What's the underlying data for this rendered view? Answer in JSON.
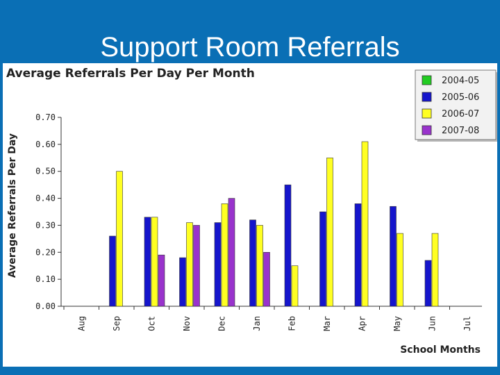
{
  "slide": {
    "title": "Support Room Referrals"
  },
  "colors": {
    "background": "#0a6fb5",
    "panel": "#ffffff"
  },
  "chart_data": {
    "type": "bar",
    "title": "Average Referrals Per Day Per Month",
    "xlabel": "School Months",
    "ylabel": "Average Referrals Per Day",
    "categories": [
      "Aug",
      "Sep",
      "Oct",
      "Nov",
      "Dec",
      "Jan",
      "Feb",
      "Mar",
      "Apr",
      "May",
      "Jun",
      "Jul"
    ],
    "ylim": [
      0,
      0.7
    ],
    "yticks": [
      "0.00",
      "0.10",
      "0.20",
      "0.30",
      "0.40",
      "0.50",
      "0.60",
      "0.70"
    ],
    "grid": false,
    "legend_position": "top-right",
    "series": [
      {
        "name": "2004-05",
        "color": "#22cc22",
        "values": [
          null,
          null,
          null,
          null,
          null,
          null,
          null,
          null,
          null,
          null,
          null,
          null
        ]
      },
      {
        "name": "2005-06",
        "color": "#1515cc",
        "values": [
          null,
          0.26,
          0.33,
          0.18,
          0.31,
          0.32,
          0.45,
          0.35,
          0.38,
          0.37,
          0.17,
          null
        ]
      },
      {
        "name": "2006-07",
        "color": "#ffff22",
        "values": [
          null,
          0.5,
          0.33,
          0.31,
          0.38,
          0.3,
          0.15,
          0.55,
          0.61,
          0.27,
          0.27,
          null
        ]
      },
      {
        "name": "2007-08",
        "color": "#9933cc",
        "values": [
          null,
          null,
          0.19,
          0.3,
          0.4,
          0.2,
          null,
          null,
          null,
          null,
          null,
          null
        ]
      }
    ]
  }
}
